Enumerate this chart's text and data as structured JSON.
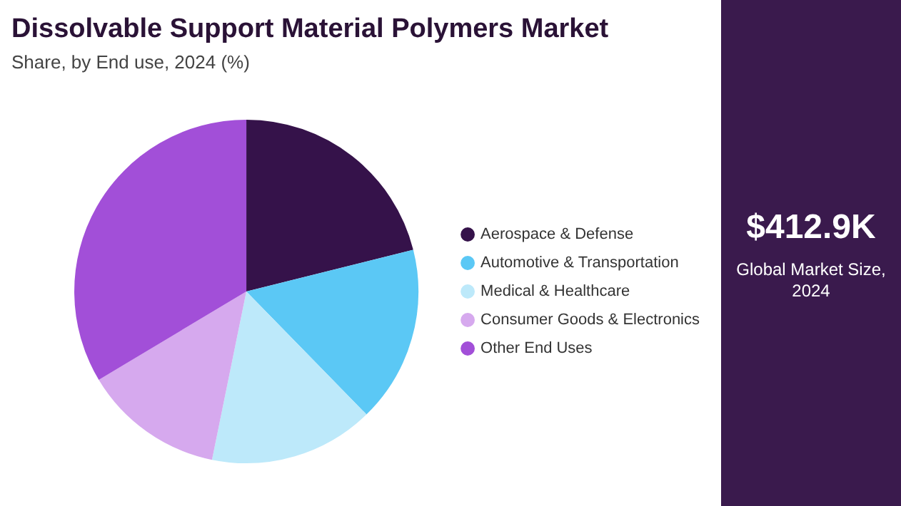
{
  "chart_data": {
    "type": "pie",
    "title": "Dissolvable Support Material Polymers Market",
    "subtitle": "Share, by End use, 2024 (%)",
    "categories": [
      "Aerospace & Defense",
      "Automotive & Transportation",
      "Medical & Healthcare",
      "Consumer Goods & Electronics",
      "Other End Uses"
    ],
    "values": [
      21.1,
      16.6,
      15.5,
      13.2,
      33.6
    ],
    "colors": [
      "#35124a",
      "#5bc8f5",
      "#bde9fa",
      "#d6a9ee",
      "#a24fd8"
    ],
    "legend": "right",
    "annotations": [
      "$412.9K",
      "Global Market Size, 2024"
    ]
  }
}
